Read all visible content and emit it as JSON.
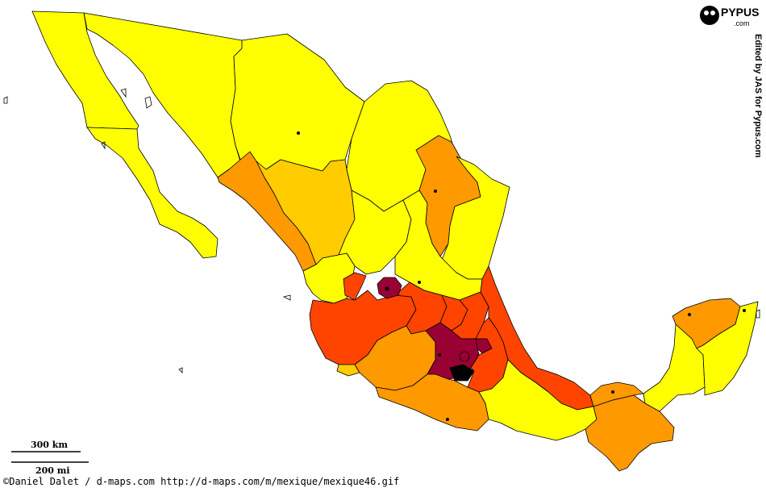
{
  "colors": {
    "yellow": "#ffff00",
    "light_orange": "#ffcc00",
    "orange": "#ff9900",
    "red_orange": "#ff4400",
    "crimson": "#990033",
    "black": "#000000"
  },
  "scale": {
    "km_label": "300 km",
    "mi_label": "200 mi"
  },
  "footer": {
    "text": "©Daniel Dalet / d-maps.com  http://d-maps.com/m/mexique/mexique46.gif"
  },
  "logo": {
    "text": "PYPUS",
    "subtext": ".com"
  },
  "credit": {
    "text": "Edited by JAS for Pypus.com"
  },
  "states": [
    {
      "name": "Baja California",
      "fill": "yellow"
    },
    {
      "name": "Baja California Sur",
      "fill": "yellow"
    },
    {
      "name": "Sonora",
      "fill": "yellow"
    },
    {
      "name": "Chihuahua",
      "fill": "yellow"
    },
    {
      "name": "Coahuila",
      "fill": "yellow"
    },
    {
      "name": "Nuevo Leon",
      "fill": "orange"
    },
    {
      "name": "Tamaulipas",
      "fill": "yellow"
    },
    {
      "name": "Sinaloa",
      "fill": "orange"
    },
    {
      "name": "Durango",
      "fill": "light_orange"
    },
    {
      "name": "Zacatecas",
      "fill": "yellow"
    },
    {
      "name": "San Luis Potosi",
      "fill": "yellow"
    },
    {
      "name": "Nayarit",
      "fill": "yellow"
    },
    {
      "name": "Aguascalientes",
      "fill": "red_orange"
    },
    {
      "name": "Jalisco",
      "fill": "red_orange"
    },
    {
      "name": "Guanajuato",
      "fill": "red_orange"
    },
    {
      "name": "Queretaro",
      "fill": "red_orange"
    },
    {
      "name": "Hidalgo",
      "fill": "red_orange"
    },
    {
      "name": "Veracruz",
      "fill": "red_orange"
    },
    {
      "name": "Colima",
      "fill": "light_orange"
    },
    {
      "name": "Michoacan",
      "fill": "orange"
    },
    {
      "name": "Mexico",
      "fill": "crimson"
    },
    {
      "name": "Mexico City",
      "fill": "black"
    },
    {
      "name": "Morelos",
      "fill": "crimson"
    },
    {
      "name": "Tlaxcala",
      "fill": "crimson"
    },
    {
      "name": "Puebla",
      "fill": "red_orange"
    },
    {
      "name": "Guerrero",
      "fill": "orange"
    },
    {
      "name": "Oaxaca",
      "fill": "yellow"
    },
    {
      "name": "Chiapas",
      "fill": "orange"
    },
    {
      "name": "Tabasco",
      "fill": "orange"
    },
    {
      "name": "Campeche",
      "fill": "yellow"
    },
    {
      "name": "Yucatan",
      "fill": "orange"
    },
    {
      "name": "Quintana Roo",
      "fill": "yellow"
    },
    {
      "name": "Jalisco enclave",
      "fill": "crimson"
    }
  ]
}
